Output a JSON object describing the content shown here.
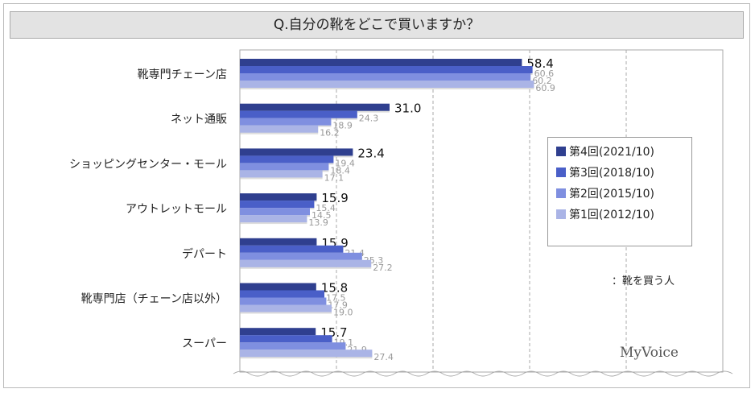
{
  "chart_data": {
    "type": "bar",
    "orientation": "horizontal",
    "title": "Q.自分の靴をどこで買いますか？",
    "categories": [
      "靴専門チェーン店",
      "ネット通販",
      "ショッピングセンター・モール",
      "アウトレットモール",
      "デパート",
      "靴専門店（チェーン店以外）",
      "スーパー"
    ],
    "series": [
      {
        "name": "第4回(2021/10)",
        "color": "#2f3f8f",
        "values": [
          58.4,
          31.0,
          23.4,
          15.9,
          15.9,
          15.8,
          15.7
        ]
      },
      {
        "name": "第3回(2018/10)",
        "color": "#4a5fc8",
        "values": [
          60.6,
          24.3,
          19.4,
          15.4,
          21.4,
          17.5,
          19.1
        ]
      },
      {
        "name": "第2回(2015/10)",
        "color": "#7f8fe0",
        "values": [
          60.2,
          18.9,
          18.4,
          14.5,
          25.3,
          17.9,
          21.9
        ]
      },
      {
        "name": "第1回(2012/10)",
        "color": "#aab4e6",
        "values": [
          60.9,
          16.2,
          17.1,
          13.9,
          27.2,
          19.0,
          27.4
        ]
      }
    ],
    "xlim": [
      0,
      100
    ],
    "gridlines": [
      20,
      40,
      60,
      80
    ],
    "legend_position": "right",
    "note": "：靴を買う人"
  },
  "logo": "MyVoice"
}
